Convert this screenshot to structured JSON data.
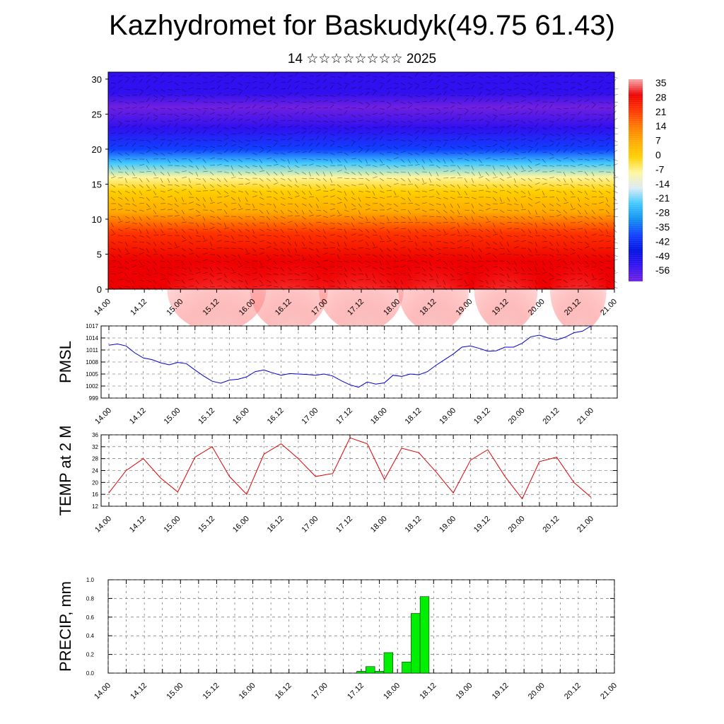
{
  "title": "Kazhydromet for Baskudyk(49.75 61.43)",
  "subtitle": "14 ☆☆☆☆☆☆☆☆ 2025",
  "time_labels": [
    "14.00",
    "14.12",
    "15.00",
    "15.12",
    "16.00",
    "16.12",
    "17.00",
    "17.12",
    "18.00",
    "18.12",
    "19.00",
    "19.12",
    "20.00",
    "20.12",
    "21.00"
  ],
  "chart_data": [
    {
      "type": "heatmap",
      "name": "upper-air-cross-section",
      "ylim": [
        0,
        31
      ],
      "yticks": [
        0,
        5,
        10,
        15,
        20,
        25,
        30
      ],
      "colorbar_labels": [
        "35",
        "28",
        "21",
        "14",
        "7",
        "0",
        "-7",
        "-14",
        "-21",
        "-28",
        "-35",
        "-42",
        "-49",
        "-56"
      ],
      "colorbar_colors": [
        "#f4a9a9",
        "#ee0000",
        "#ff3300",
        "#ff7700",
        "#ffaa00",
        "#ffd000",
        "#fff6a0",
        "#dcebf5",
        "#40c8ff",
        "#1090f0",
        "#1040ff",
        "#0010e0",
        "#3010f0",
        "#7020e0"
      ],
      "level_profile": [
        {
          "z": 0,
          "value": 30
        },
        {
          "z": 4,
          "value": 26
        },
        {
          "z": 8,
          "value": 18
        },
        {
          "z": 11,
          "value": 10
        },
        {
          "z": 14,
          "value": 2
        },
        {
          "z": 16,
          "value": -8
        },
        {
          "z": 18,
          "value": -22
        },
        {
          "z": 20,
          "value": -35
        },
        {
          "z": 23,
          "value": -48
        },
        {
          "z": 26,
          "value": -54
        },
        {
          "z": 28,
          "value": -50
        },
        {
          "z": 31,
          "value": -46
        }
      ]
    },
    {
      "type": "line",
      "name": "pmsl",
      "ylabel": "PMSL",
      "ylim": [
        999,
        1017
      ],
      "yticks": [
        999,
        1002,
        1005,
        1008,
        1011,
        1014,
        1017
      ],
      "color": "#0000cc",
      "x": [
        0,
        3,
        6,
        9,
        12,
        15,
        18,
        21,
        24,
        27,
        30,
        33,
        36,
        39,
        42,
        45,
        48,
        51,
        54,
        57,
        60,
        63,
        66,
        69,
        72,
        75,
        78,
        81,
        84,
        87,
        90,
        93,
        96,
        99,
        102,
        105,
        108,
        111,
        114,
        117,
        120,
        123,
        126,
        129,
        132,
        135,
        138,
        141,
        144,
        147,
        150,
        153,
        156,
        159,
        162,
        165,
        168
      ],
      "values": [
        1012.2,
        1012.5,
        1012,
        1010.3,
        1009,
        1008.6,
        1007.8,
        1007.3,
        1007.9,
        1007.6,
        1006,
        1004.5,
        1003.2,
        1002.7,
        1003.5,
        1003.7,
        1004.3,
        1005.6,
        1006,
        1005.3,
        1004.7,
        1005.1,
        1005,
        1004.9,
        1004.7,
        1005,
        1004.5,
        1003.3,
        1002.3,
        1001.7,
        1003,
        1002.5,
        1002.8,
        1004.7,
        1004.4,
        1005,
        1004.8,
        1005.6,
        1007.2,
        1008.6,
        1010,
        1011.7,
        1012,
        1011.4,
        1010.7,
        1010.8,
        1011.7,
        1011.7,
        1012.7,
        1014.3,
        1014.7,
        1014,
        1013.5,
        1014.2,
        1015.3,
        1015.7,
        1017
      ]
    },
    {
      "type": "line",
      "name": "temp-2m",
      "ylabel": "TEMP at 2 M",
      "ylim": [
        12,
        36
      ],
      "yticks": [
        12,
        16,
        20,
        24,
        28,
        32,
        36
      ],
      "color": "#dd0000",
      "x": [
        0,
        6,
        12,
        18,
        24,
        30,
        36,
        42,
        48,
        54,
        60,
        66,
        72,
        78,
        84,
        90,
        96,
        102,
        108,
        114,
        120,
        126,
        132,
        138,
        144,
        150,
        156,
        162,
        168
      ],
      "values": [
        16.5,
        24,
        28,
        21.5,
        16.8,
        28.5,
        32,
        22,
        16,
        29.5,
        33,
        28,
        22,
        23,
        35,
        33,
        21,
        31.5,
        30,
        23.5,
        16.5,
        27.5,
        31,
        22,
        14.5,
        27,
        28.5,
        20,
        15
      ]
    },
    {
      "type": "bar",
      "name": "precip",
      "ylabel": "PRECIP, mm",
      "ylim": [
        0,
        1.0
      ],
      "yticks": [
        0.0,
        0.2,
        0.4,
        0.6,
        0.8,
        1.0
      ],
      "color": "#00ee00",
      "x": [
        84,
        87,
        90,
        93,
        99,
        102,
        105
      ],
      "values": [
        0.02,
        0.07,
        0.02,
        0.22,
        0.12,
        0.64,
        0.82
      ]
    }
  ]
}
